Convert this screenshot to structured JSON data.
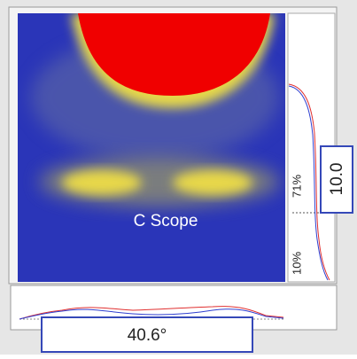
{
  "image": {
    "label": "C Scope"
  },
  "side_panel": {
    "value": "10.0",
    "upper_percent": "71%",
    "lower_percent": "10%"
  },
  "bottom_panel": {
    "value": "40.6°"
  }
}
